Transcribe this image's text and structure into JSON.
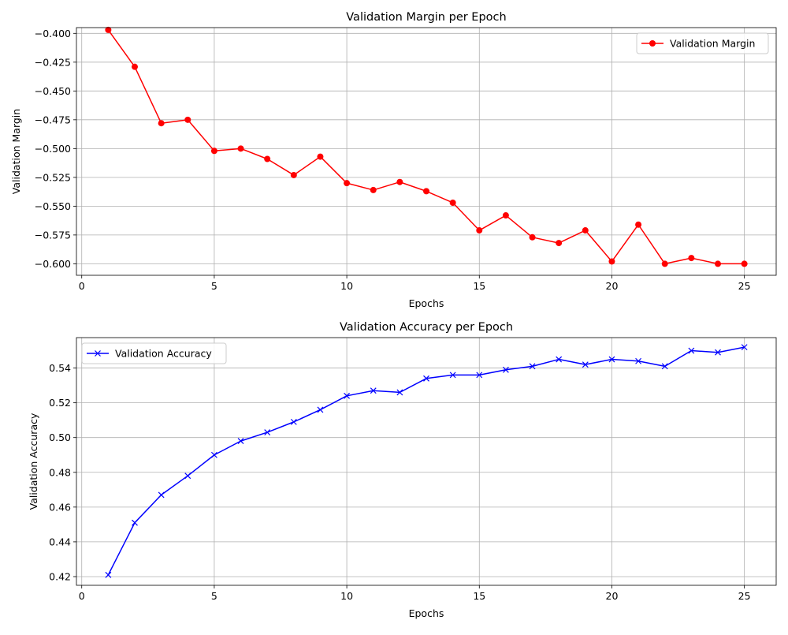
{
  "chart_data": [
    {
      "type": "line",
      "title": "Validation Margin per Epoch",
      "xlabel": "Epochs",
      "ylabel": "Validation Margin",
      "xlim": [
        -0.2,
        26.2
      ],
      "ylim": [
        -0.61,
        -0.395
      ],
      "xticks": [
        0,
        5,
        10,
        15,
        20,
        25
      ],
      "yticks": [
        -0.6,
        -0.575,
        -0.55,
        -0.525,
        -0.5,
        -0.475,
        -0.45,
        -0.425,
        -0.4
      ],
      "xtick_labels": [
        "0",
        "5",
        "10",
        "15",
        "20",
        "25"
      ],
      "ytick_labels": [
        "−0.600",
        "−0.575",
        "−0.550",
        "−0.525",
        "−0.500",
        "−0.475",
        "−0.450",
        "−0.425",
        "−0.400"
      ],
      "grid": true,
      "legend_position": "upper right",
      "x": [
        1,
        2,
        3,
        4,
        5,
        6,
        7,
        8,
        9,
        10,
        11,
        12,
        13,
        14,
        15,
        16,
        17,
        18,
        19,
        20,
        21,
        22,
        23,
        24,
        25
      ],
      "series": [
        {
          "name": "Validation Margin",
          "color": "#ff0000",
          "marker": "circle",
          "values": [
            -0.397,
            -0.429,
            -0.478,
            -0.475,
            -0.502,
            -0.5,
            -0.509,
            -0.523,
            -0.507,
            -0.53,
            -0.536,
            -0.529,
            -0.537,
            -0.547,
            -0.571,
            -0.558,
            -0.577,
            -0.582,
            -0.571,
            -0.598,
            -0.566,
            -0.6,
            -0.595,
            -0.6,
            -0.6
          ]
        }
      ]
    },
    {
      "type": "line",
      "title": "Validation Accuracy per Epoch",
      "xlabel": "Epochs",
      "ylabel": "Validation Accuracy",
      "xlim": [
        -0.2,
        26.2
      ],
      "ylim": [
        0.415,
        0.5575
      ],
      "xticks": [
        0,
        5,
        10,
        15,
        20,
        25
      ],
      "yticks": [
        0.42,
        0.44,
        0.46,
        0.48,
        0.5,
        0.52,
        0.54
      ],
      "xtick_labels": [
        "0",
        "5",
        "10",
        "15",
        "20",
        "25"
      ],
      "ytick_labels": [
        "0.42",
        "0.44",
        "0.46",
        "0.48",
        "0.50",
        "0.52",
        "0.54"
      ],
      "grid": true,
      "legend_position": "upper left",
      "x": [
        1,
        2,
        3,
        4,
        5,
        6,
        7,
        8,
        9,
        10,
        11,
        12,
        13,
        14,
        15,
        16,
        17,
        18,
        19,
        20,
        21,
        22,
        23,
        24,
        25
      ],
      "series": [
        {
          "name": "Validation Accuracy",
          "color": "#0000ff",
          "marker": "x",
          "values": [
            0.421,
            0.451,
            0.467,
            0.478,
            0.49,
            0.498,
            0.503,
            0.509,
            0.516,
            0.524,
            0.527,
            0.526,
            0.534,
            0.536,
            0.536,
            0.539,
            0.541,
            0.545,
            0.542,
            0.545,
            0.544,
            0.541,
            0.55,
            0.549,
            0.552
          ]
        }
      ]
    }
  ]
}
